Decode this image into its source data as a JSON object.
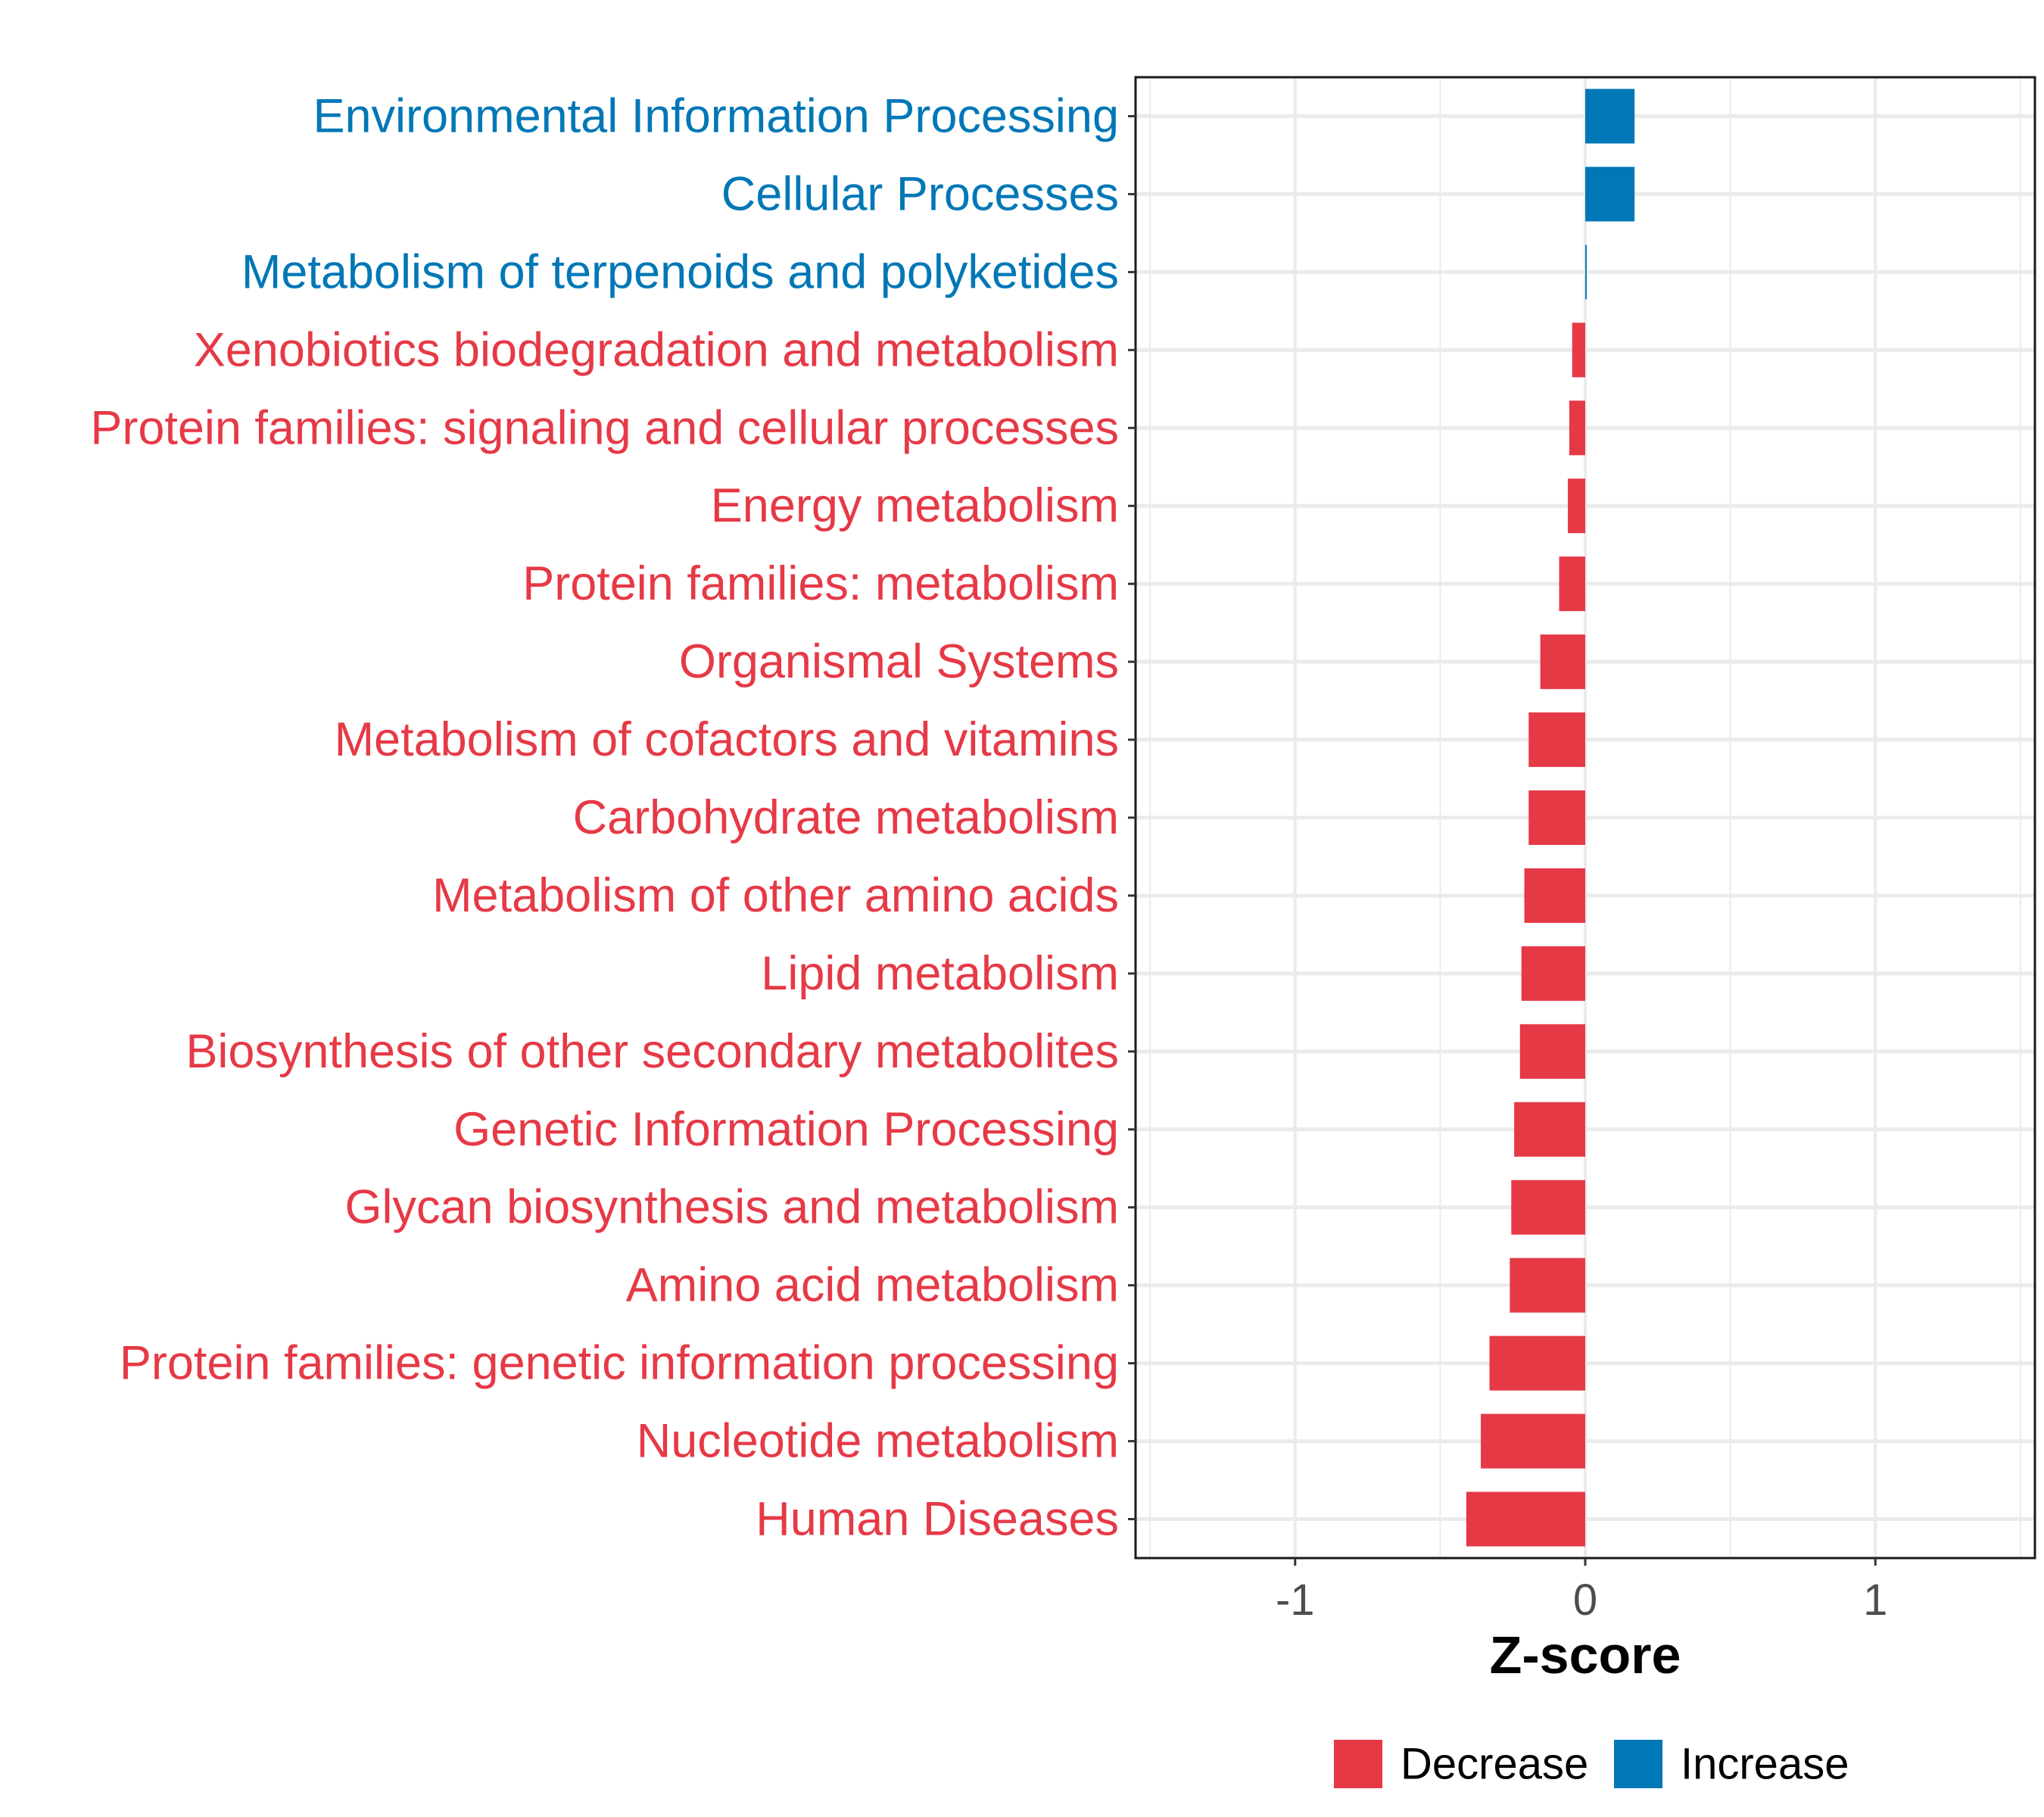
{
  "chart_data": {
    "type": "bar",
    "orientation": "horizontal",
    "xlabel": "Z-score",
    "ylabel": "",
    "xlim": [
      -1.55,
      1.55
    ],
    "xticks": [
      -1,
      0,
      1
    ],
    "xtick_labels": [
      "-1",
      "0",
      "1"
    ],
    "grid": true,
    "legend_position": "bottom",
    "legend": [
      {
        "name": "Decrease",
        "color": "#e63946"
      },
      {
        "name": "Increase",
        "color": "#0077b6"
      }
    ],
    "categories": [
      "Environmental Information Processing",
      "Cellular Processes",
      "Metabolism of terpenoids and polyketides",
      "Xenobiotics biodegradation and metabolism",
      "Protein families: signaling and cellular processes",
      "Energy metabolism",
      "Protein families: metabolism",
      "Organismal Systems",
      "Metabolism of cofactors and vitamins",
      "Carbohydrate metabolism",
      "Metabolism of other amino acids",
      "Lipid metabolism",
      "Biosynthesis of other secondary metabolites",
      "Genetic Information Processing",
      "Glycan biosynthesis and metabolism",
      "Amino acid metabolism",
      "Protein families: genetic information processing",
      "Nucleotide metabolism",
      "Human Diseases"
    ],
    "values": [
      0.17,
      0.17,
      0.005,
      -0.045,
      -0.055,
      -0.06,
      -0.09,
      -0.155,
      -0.195,
      -0.195,
      -0.21,
      -0.22,
      -0.225,
      -0.245,
      -0.255,
      -0.26,
      -0.33,
      -0.36,
      -0.41
    ],
    "groups": [
      "Increase",
      "Increase",
      "Increase",
      "Decrease",
      "Decrease",
      "Decrease",
      "Decrease",
      "Decrease",
      "Decrease",
      "Decrease",
      "Decrease",
      "Decrease",
      "Decrease",
      "Decrease",
      "Decrease",
      "Decrease",
      "Decrease",
      "Decrease",
      "Decrease"
    ]
  }
}
